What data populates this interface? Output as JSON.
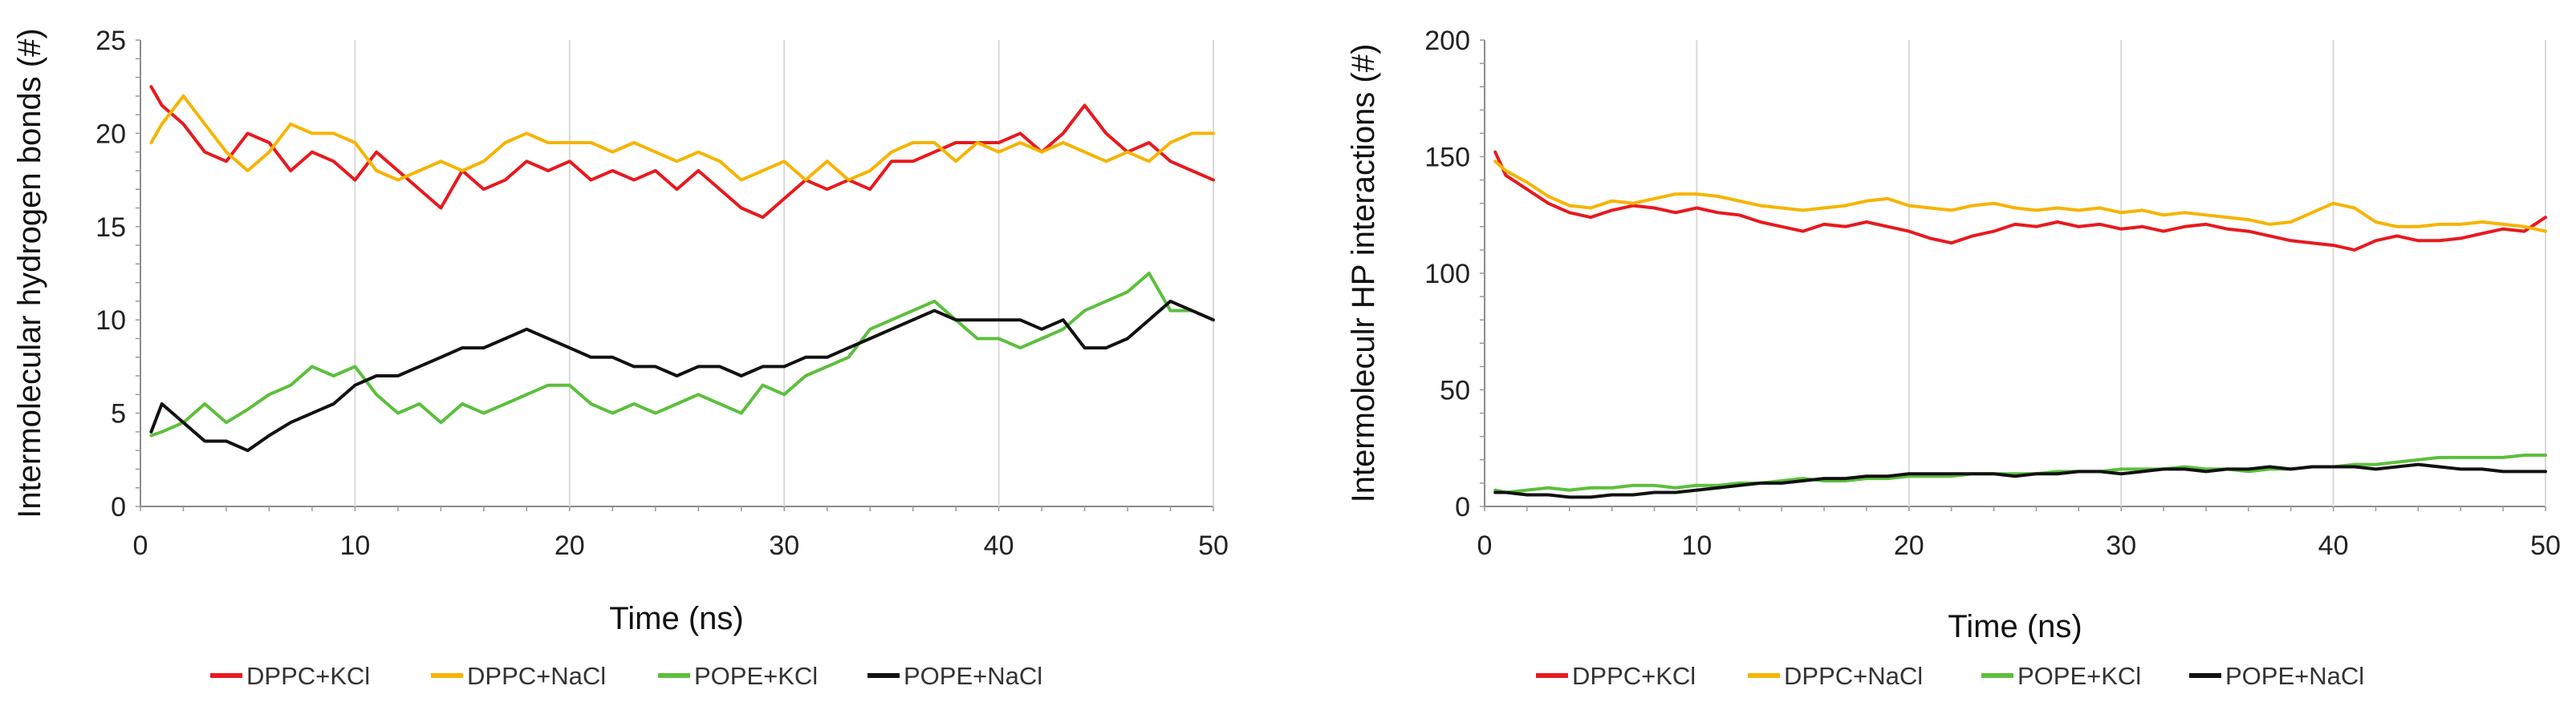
{
  "legend": [
    {
      "label": "DPPC+KCl",
      "color": "#e8191e"
    },
    {
      "label": "DPPC+NaCl",
      "color": "#f6b400"
    },
    {
      "label": "POPE+KCl",
      "color": "#5cbf3c"
    },
    {
      "label": "POPE+NaCl",
      "color": "#111111"
    }
  ],
  "chart_data": [
    {
      "type": "line",
      "xlabel": "Time (ns)",
      "ylabel": "Intermolecular hydrogen bonds (#)",
      "xlim": [
        0,
        50
      ],
      "ylim": [
        0,
        25
      ],
      "xticks": [
        "0",
        "10",
        "20",
        "30",
        "40",
        "50"
      ],
      "yticks": [
        "0",
        "5",
        "10",
        "15",
        "20",
        "25"
      ],
      "grid": "vertical",
      "legend_position": "bottom",
      "series": [
        {
          "name": "DPPC+KCl",
          "color": "#e8191e",
          "x": [
            0.5,
            1,
            2,
            3,
            4,
            5,
            6,
            7,
            8,
            9,
            10,
            11,
            12,
            13,
            14,
            15,
            16,
            17,
            18,
            19,
            20,
            21,
            22,
            23,
            24,
            25,
            26,
            27,
            28,
            29,
            30,
            31,
            32,
            33,
            34,
            35,
            36,
            37,
            38,
            39,
            40,
            41,
            42,
            43,
            44,
            45,
            46,
            47,
            48,
            49,
            50
          ],
          "y": [
            22.5,
            21.5,
            20.5,
            19,
            18.5,
            20,
            19.5,
            18,
            19,
            18.5,
            17.5,
            19,
            18,
            17,
            16,
            18,
            17,
            17.5,
            18.5,
            18,
            18.5,
            17.5,
            18,
            17.5,
            18,
            17,
            18,
            17,
            16,
            15.5,
            16.5,
            17.5,
            17,
            17.5,
            17,
            18.5,
            18.5,
            19,
            19.5,
            19.5,
            19.5,
            20,
            19,
            20,
            21.5,
            20,
            19,
            19.5,
            18.5,
            18,
            17.5
          ]
        },
        {
          "name": "DPPC+NaCl",
          "color": "#f6b400",
          "x": [
            0.5,
            1,
            2,
            3,
            4,
            5,
            6,
            7,
            8,
            9,
            10,
            11,
            12,
            13,
            14,
            15,
            16,
            17,
            18,
            19,
            20,
            21,
            22,
            23,
            24,
            25,
            26,
            27,
            28,
            29,
            30,
            31,
            32,
            33,
            34,
            35,
            36,
            37,
            38,
            39,
            40,
            41,
            42,
            43,
            44,
            45,
            46,
            47,
            48,
            49,
            50
          ],
          "y": [
            19.5,
            20.5,
            22,
            20.5,
            19,
            18,
            19,
            20.5,
            20,
            20,
            19.5,
            18,
            17.5,
            18,
            18.5,
            18,
            18.5,
            19.5,
            20,
            19.5,
            19.5,
            19.5,
            19,
            19.5,
            19,
            18.5,
            19,
            18.5,
            17.5,
            18,
            18.5,
            17.5,
            18.5,
            17.5,
            18,
            19,
            19.5,
            19.5,
            18.5,
            19.5,
            19,
            19.5,
            19,
            19.5,
            19,
            18.5,
            19,
            18.5,
            19.5,
            20,
            20
          ]
        },
        {
          "name": "POPE+KCl",
          "color": "#5cbf3c",
          "x": [
            0.5,
            1,
            2,
            3,
            4,
            5,
            6,
            7,
            8,
            9,
            10,
            11,
            12,
            13,
            14,
            15,
            16,
            17,
            18,
            19,
            20,
            21,
            22,
            23,
            24,
            25,
            26,
            27,
            28,
            29,
            30,
            31,
            32,
            33,
            34,
            35,
            36,
            37,
            38,
            39,
            40,
            41,
            42,
            43,
            44,
            45,
            46,
            47,
            48,
            49,
            50
          ],
          "y": [
            3.8,
            4,
            4.5,
            5.5,
            4.5,
            5.2,
            6,
            6.5,
            7.5,
            7,
            7.5,
            6,
            5,
            5.5,
            4.5,
            5.5,
            5,
            5.5,
            6,
            6.5,
            6.5,
            5.5,
            5,
            5.5,
            5,
            5.5,
            6,
            5.5,
            5,
            6.5,
            6,
            7,
            7.5,
            8,
            9.5,
            10,
            10.5,
            11,
            10,
            9,
            9,
            8.5,
            9,
            9.5,
            10.5,
            11,
            11.5,
            12.5,
            10.5,
            10.5,
            10
          ]
        },
        {
          "name": "POPE+NaCl",
          "color": "#111111",
          "x": [
            0.5,
            1,
            2,
            3,
            4,
            5,
            6,
            7,
            8,
            9,
            10,
            11,
            12,
            13,
            14,
            15,
            16,
            17,
            18,
            19,
            20,
            21,
            22,
            23,
            24,
            25,
            26,
            27,
            28,
            29,
            30,
            31,
            32,
            33,
            34,
            35,
            36,
            37,
            38,
            39,
            40,
            41,
            42,
            43,
            44,
            45,
            46,
            47,
            48,
            49,
            50
          ],
          "y": [
            4,
            5.5,
            4.5,
            3.5,
            3.5,
            3,
            3.8,
            4.5,
            5,
            5.5,
            6.5,
            7,
            7,
            7.5,
            8,
            8.5,
            8.5,
            9,
            9.5,
            9,
            8.5,
            8,
            8,
            7.5,
            7.5,
            7,
            7.5,
            7.5,
            7,
            7.5,
            7.5,
            8,
            8,
            8.5,
            9,
            9.5,
            10,
            10.5,
            10,
            10,
            10,
            10,
            9.5,
            10,
            8.5,
            8.5,
            9,
            10,
            11,
            10.5,
            10
          ]
        }
      ]
    },
    {
      "type": "line",
      "xlabel": "Time (ns)",
      "ylabel": "Intermoleculr HP interactions (#)",
      "xlim": [
        0,
        50
      ],
      "ylim": [
        0,
        200
      ],
      "xticks": [
        "0",
        "10",
        "20",
        "30",
        "40",
        "50"
      ],
      "yticks": [
        "0",
        "50",
        "100",
        "150",
        "200"
      ],
      "grid": "vertical",
      "legend_position": "bottom",
      "series": [
        {
          "name": "DPPC+KCl",
          "color": "#e8191e",
          "x": [
            0.5,
            1,
            2,
            3,
            4,
            5,
            6,
            7,
            8,
            9,
            10,
            11,
            12,
            13,
            14,
            15,
            16,
            17,
            18,
            19,
            20,
            21,
            22,
            23,
            24,
            25,
            26,
            27,
            28,
            29,
            30,
            31,
            32,
            33,
            34,
            35,
            36,
            37,
            38,
            39,
            40,
            41,
            42,
            43,
            44,
            45,
            46,
            47,
            48,
            49,
            50
          ],
          "y": [
            152,
            142,
            136,
            130,
            126,
            124,
            127,
            129,
            128,
            126,
            128,
            126,
            125,
            122,
            120,
            118,
            121,
            120,
            122,
            120,
            118,
            115,
            113,
            116,
            118,
            121,
            120,
            122,
            120,
            121,
            119,
            120,
            118,
            120,
            121,
            119,
            118,
            116,
            114,
            113,
            112,
            110,
            114,
            116,
            114,
            114,
            115,
            117,
            119,
            118,
            124
          ]
        },
        {
          "name": "DPPC+NaCl",
          "color": "#f6b400",
          "x": [
            0.5,
            1,
            2,
            3,
            4,
            5,
            6,
            7,
            8,
            9,
            10,
            11,
            12,
            13,
            14,
            15,
            16,
            17,
            18,
            19,
            20,
            21,
            22,
            23,
            24,
            25,
            26,
            27,
            28,
            29,
            30,
            31,
            32,
            33,
            34,
            35,
            36,
            37,
            38,
            39,
            40,
            41,
            42,
            43,
            44,
            45,
            46,
            47,
            48,
            49,
            50
          ],
          "y": [
            148,
            144,
            139,
            133,
            129,
            128,
            131,
            130,
            132,
            134,
            134,
            133,
            131,
            129,
            128,
            127,
            128,
            129,
            131,
            132,
            129,
            128,
            127,
            129,
            130,
            128,
            127,
            128,
            127,
            128,
            126,
            127,
            125,
            126,
            125,
            124,
            123,
            121,
            122,
            126,
            130,
            128,
            122,
            120,
            120,
            121,
            121,
            122,
            121,
            120,
            118
          ]
        },
        {
          "name": "POPE+KCl",
          "color": "#5cbf3c",
          "x": [
            0.5,
            1,
            2,
            3,
            4,
            5,
            6,
            7,
            8,
            9,
            10,
            11,
            12,
            13,
            14,
            15,
            16,
            17,
            18,
            19,
            20,
            21,
            22,
            23,
            24,
            25,
            26,
            27,
            28,
            29,
            30,
            31,
            32,
            33,
            34,
            35,
            36,
            37,
            38,
            39,
            40,
            41,
            42,
            43,
            44,
            45,
            46,
            47,
            48,
            49,
            50
          ],
          "y": [
            7,
            6,
            7,
            8,
            7,
            8,
            8,
            9,
            9,
            8,
            9,
            9,
            10,
            10,
            11,
            12,
            11,
            11,
            12,
            12,
            13,
            13,
            13,
            14,
            14,
            14,
            14,
            15,
            15,
            15,
            16,
            16,
            16,
            17,
            16,
            16,
            15,
            16,
            16,
            17,
            17,
            18,
            18,
            19,
            20,
            21,
            21,
            21,
            21,
            22,
            22
          ]
        },
        {
          "name": "POPE+NaCl",
          "color": "#111111",
          "x": [
            0.5,
            1,
            2,
            3,
            4,
            5,
            6,
            7,
            8,
            9,
            10,
            11,
            12,
            13,
            14,
            15,
            16,
            17,
            18,
            19,
            20,
            21,
            22,
            23,
            24,
            25,
            26,
            27,
            28,
            29,
            30,
            31,
            32,
            33,
            34,
            35,
            36,
            37,
            38,
            39,
            40,
            41,
            42,
            43,
            44,
            45,
            46,
            47,
            48,
            49,
            50
          ],
          "y": [
            6,
            6,
            5,
            5,
            4,
            4,
            5,
            5,
            6,
            6,
            7,
            8,
            9,
            10,
            10,
            11,
            12,
            12,
            13,
            13,
            14,
            14,
            14,
            14,
            14,
            13,
            14,
            14,
            15,
            15,
            14,
            15,
            16,
            16,
            15,
            16,
            16,
            17,
            16,
            17,
            17,
            17,
            16,
            17,
            18,
            17,
            16,
            16,
            15,
            15,
            15
          ]
        }
      ]
    }
  ]
}
